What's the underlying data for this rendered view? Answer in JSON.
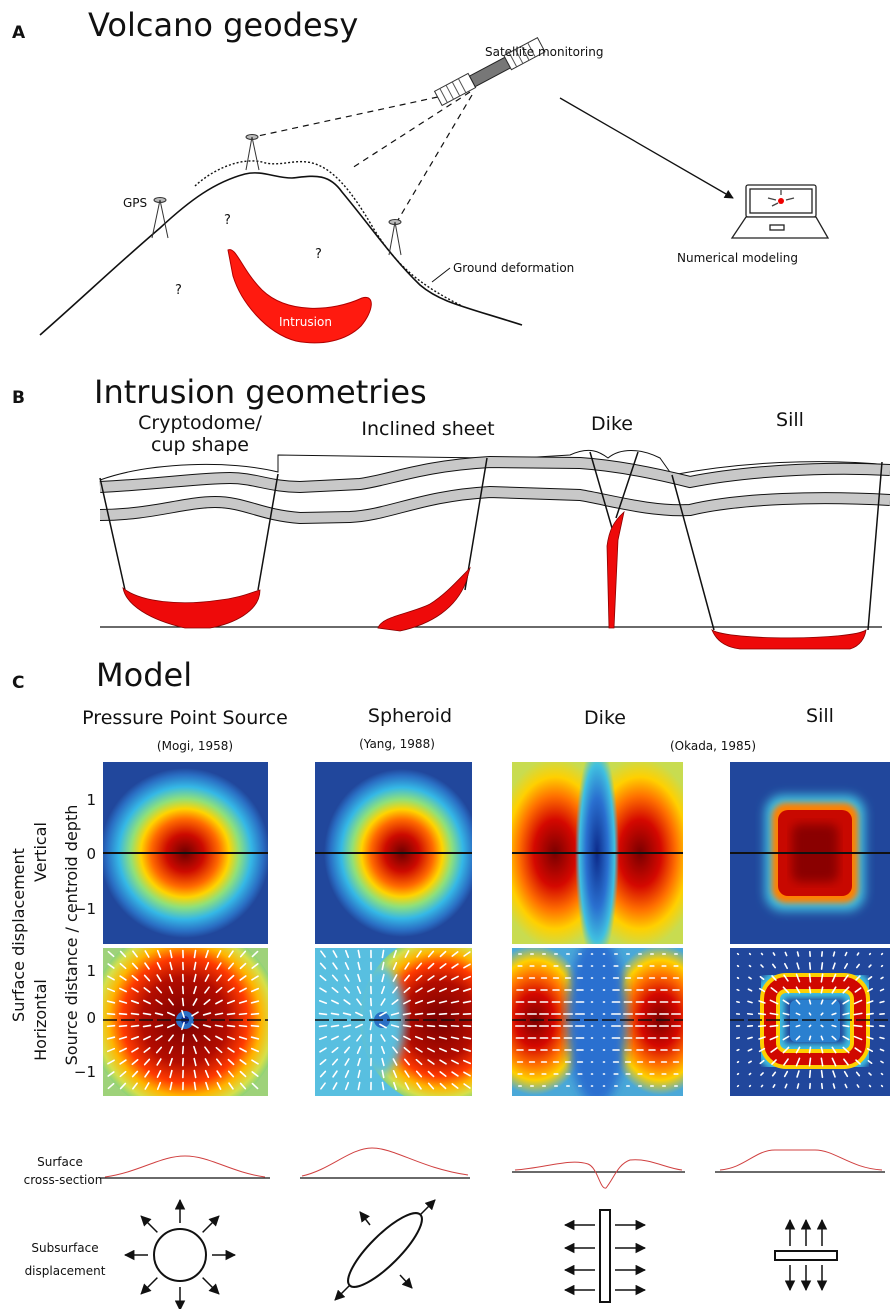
{
  "panel_a": {
    "letter": "A",
    "title": "Volcano geodesy",
    "satellite": "Satellite monitoring",
    "gps": "GPS",
    "unknowns": [
      "?",
      "?",
      "?"
    ],
    "intrusion": "Intrusion",
    "ground": "Ground deformation",
    "modeling": "Numerical modeling"
  },
  "panel_b": {
    "letter": "B",
    "title": "Intrusion geometries",
    "cryptodome": [
      "Cryptodome/",
      "cup shape"
    ],
    "labels": [
      "Inclined sheet",
      "Dike",
      "Sill"
    ]
  },
  "panel_c": {
    "letter": "C",
    "title": "Model",
    "models": [
      "Pressure Point Source",
      "Spheroid",
      "Dike",
      "Sill"
    ],
    "references": [
      "(Mogi, 1958)",
      "(Yang, 1988)",
      "(Okada, 1985)"
    ],
    "row_labels": [
      "Vertical",
      "Horizontal"
    ],
    "group_label": "Surface displacement",
    "y_axis": "Source distance / centroid depth",
    "ticks": [
      "1",
      "0",
      "−1"
    ],
    "cross_section": [
      "Surface",
      "cross-section"
    ],
    "subsurface": [
      "Subsurface",
      "displacement"
    ]
  }
}
